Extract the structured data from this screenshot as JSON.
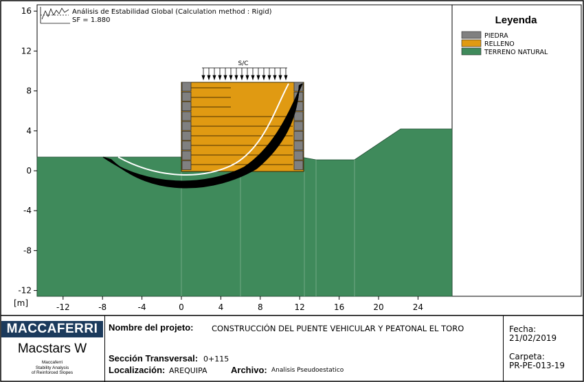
{
  "chart": {
    "analysis_title": "Análisis de Estabilidad Global (Calculation method : Rigid)",
    "sf_text": "SF = 1.880",
    "surcharge_label": "S/C",
    "unit_label": "[m]",
    "x_ticks": [
      -12,
      -8,
      -4,
      0,
      4,
      8,
      12,
      16,
      20,
      24
    ],
    "y_ticks": [
      16,
      12,
      8,
      4,
      0,
      -4,
      -8,
      -12
    ]
  },
  "legend": {
    "title": "Leyenda",
    "items": [
      {
        "label": "PIEDRA",
        "color": "#808080"
      },
      {
        "label": "RELLENO",
        "color": "#e09a12"
      },
      {
        "label": "TERRENO NATURAL",
        "color": "#3f8a5b"
      }
    ]
  },
  "footer": {
    "brand": "MACCAFERRI",
    "product": "Macstars W",
    "product_sub": [
      "Maccaferri",
      "Stability Analysis",
      "of Reinforced Slopes"
    ],
    "project_label": "Nombre del projeto:",
    "project_value": "CONSTRUCCIÓN DEL PUENTE VEHICULAR Y PEATONAL EL TORO",
    "section_label": "Sección Transversal:",
    "section_value": "0+115",
    "location_label": "Localización:",
    "location_value": "AREQUIPA",
    "file_label": "Archivo:",
    "file_value": "Analisis Pseudoestatico",
    "date_label": "Fecha:",
    "date_value": "21/02/2019",
    "folder_label": "Carpeta:",
    "folder_value": "PR-PE-013-19"
  }
}
